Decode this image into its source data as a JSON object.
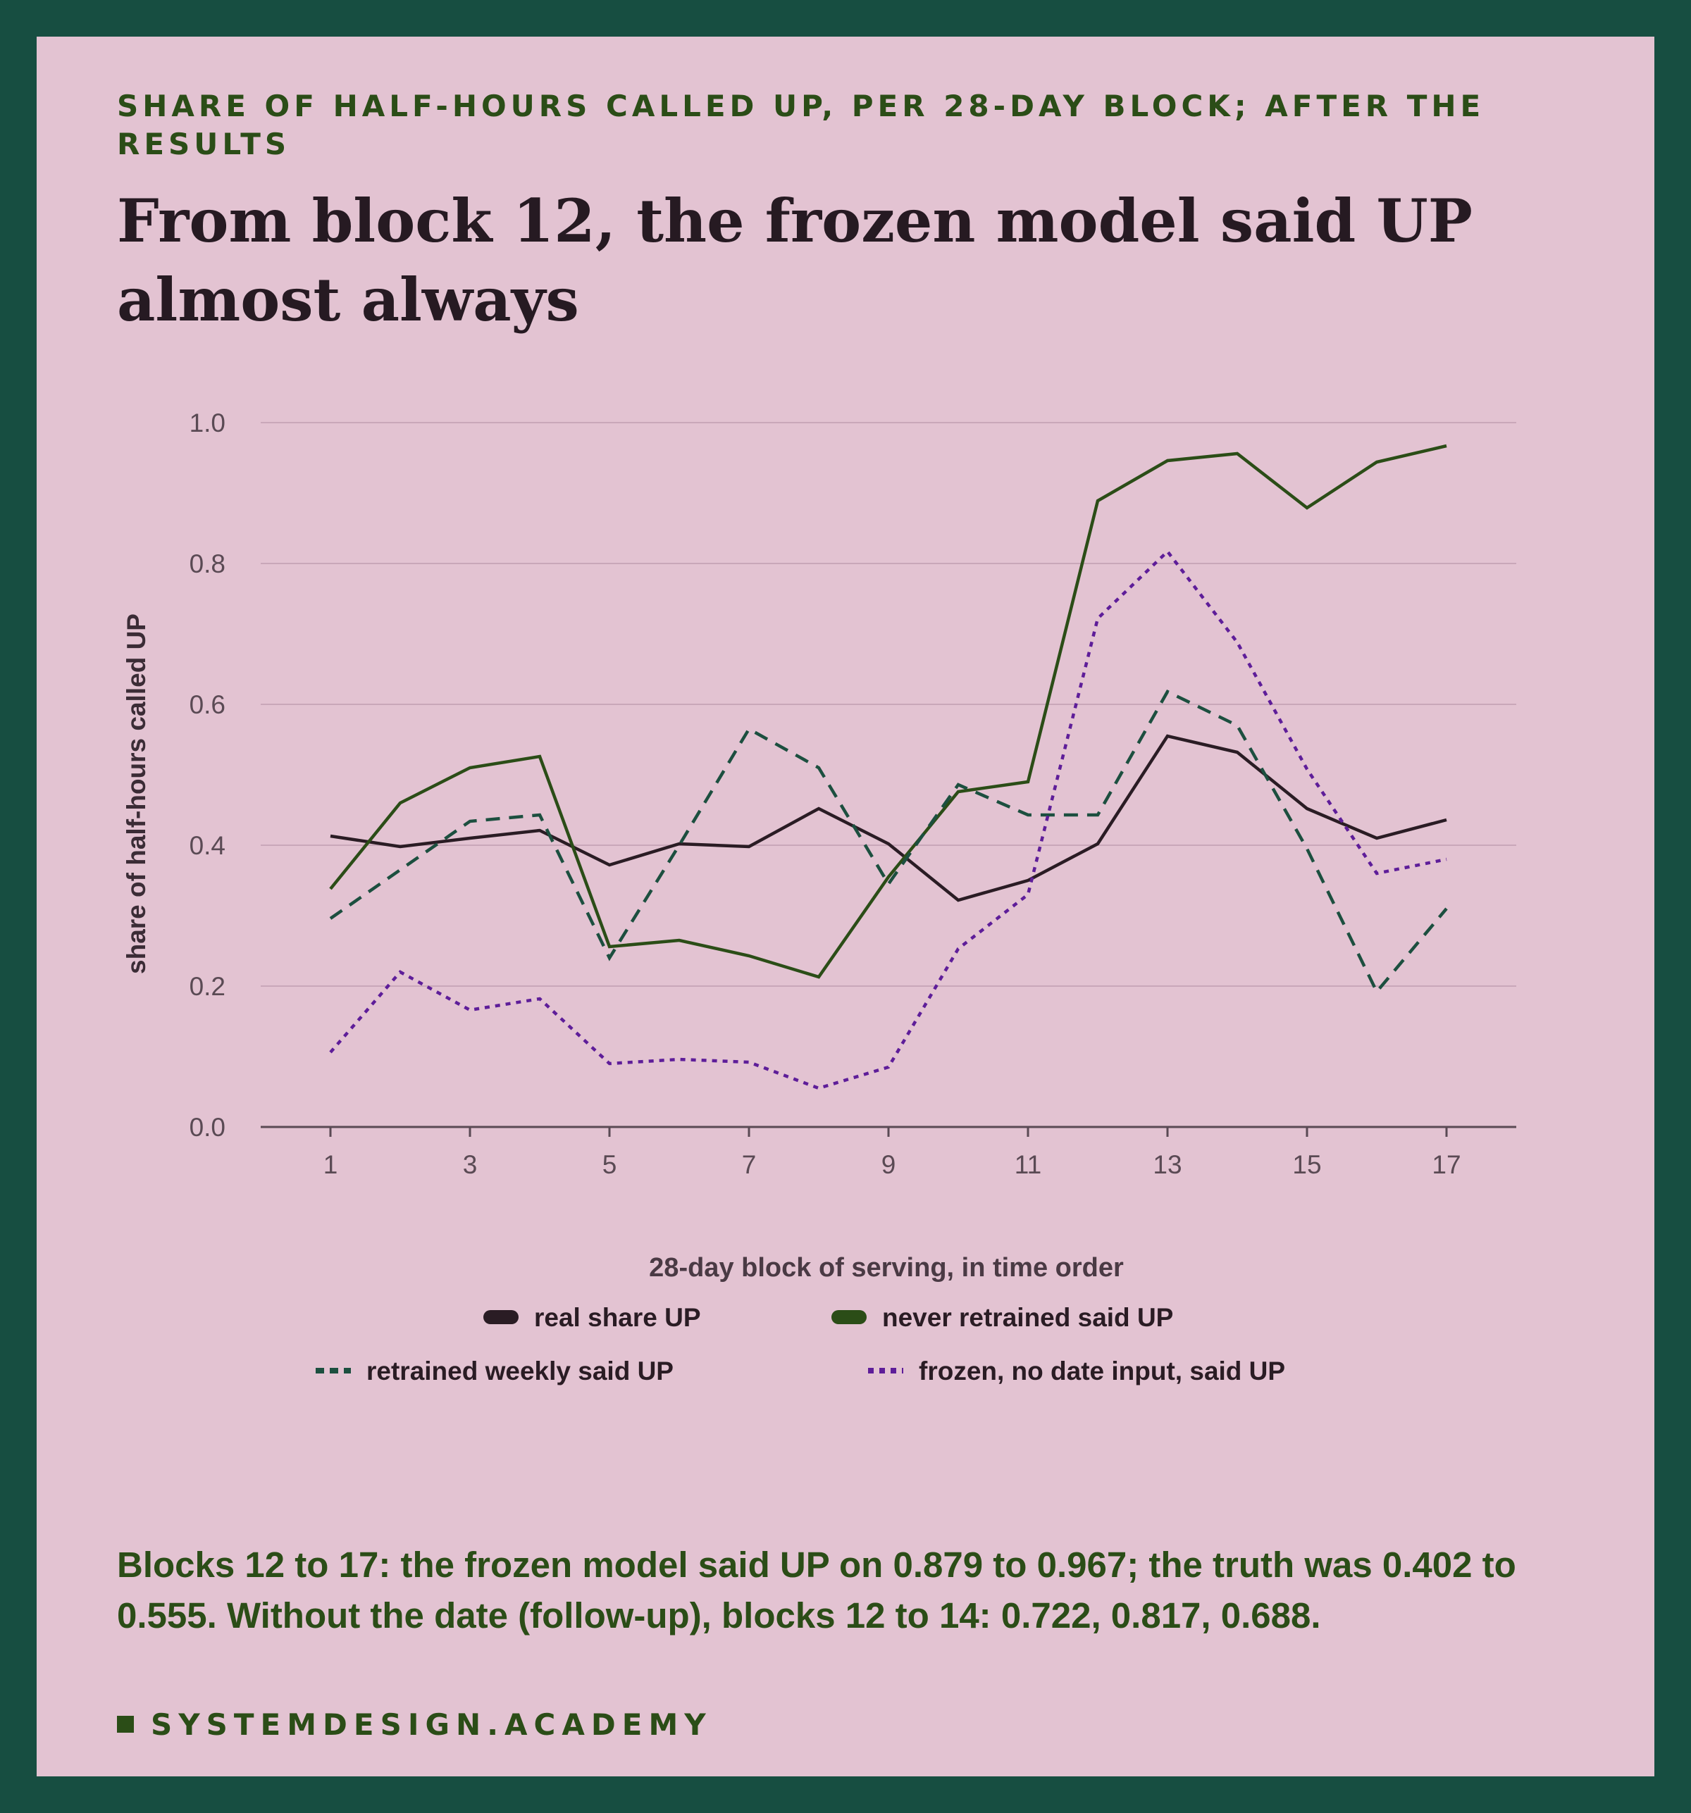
{
  "header": {
    "eyebrow": "SHARE OF HALF-HOURS CALLED UP, PER 28-DAY BLOCK; AFTER THE RESULTS",
    "headline": "From block 12, the frozen model said UP almost always"
  },
  "chart_data": {
    "type": "line",
    "xlabel": "28-day block of serving, in time order",
    "ylabel": "share of half-hours called UP",
    "x": [
      1,
      2,
      3,
      4,
      5,
      6,
      7,
      8,
      9,
      10,
      11,
      12,
      13,
      14,
      15,
      16,
      17
    ],
    "xticks": [
      1,
      3,
      5,
      7,
      9,
      11,
      13,
      15,
      17
    ],
    "xlim": [
      0,
      18
    ],
    "yticks": [
      "0.0",
      "0.2",
      "0.4",
      "0.6",
      "0.8",
      "1.0"
    ],
    "ylim": [
      0,
      1
    ],
    "grid": "horizontal",
    "legend_position": "bottom",
    "series": [
      {
        "name": "real share UP",
        "color": "#2a1c24",
        "dash": "solid",
        "values": [
          0.413,
          0.398,
          0.41,
          0.421,
          0.372,
          0.402,
          0.398,
          0.452,
          0.402,
          0.322,
          0.35,
          0.402,
          0.555,
          0.532,
          0.452,
          0.41,
          0.436
        ]
      },
      {
        "name": "never retrained said UP",
        "color": "#2b4d17",
        "dash": "solid",
        "values": [
          0.338,
          0.46,
          0.51,
          0.526,
          0.256,
          0.265,
          0.243,
          0.213,
          0.355,
          0.476,
          0.49,
          0.889,
          0.946,
          0.956,
          0.879,
          0.944,
          0.967
        ]
      },
      {
        "name": "retrained weekly said UP",
        "color": "#1c4f3f",
        "dash": "dashed",
        "values": [
          0.296,
          0.365,
          0.434,
          0.443,
          0.24,
          0.4,
          0.565,
          0.51,
          0.345,
          0.486,
          0.443,
          0.443,
          0.618,
          0.57,
          0.395,
          0.192,
          0.31
        ]
      },
      {
        "name": "frozen, no date input, said UP",
        "color": "#5e1d99",
        "dash": "dotted",
        "values": [
          0.106,
          0.22,
          0.166,
          0.182,
          0.09,
          0.096,
          0.092,
          0.055,
          0.085,
          0.253,
          0.33,
          0.722,
          0.817,
          0.688,
          0.508,
          0.36,
          0.38
        ]
      }
    ]
  },
  "footer": {
    "note": "Blocks 12 to 17: the frozen model said UP on 0.879 to 0.967; the truth was 0.402 to 0.555. Without the date (follow-up), blocks 12 to 14: 0.722, 0.817, 0.688.",
    "brand": "SYSTEMDESIGN.ACADEMY"
  }
}
